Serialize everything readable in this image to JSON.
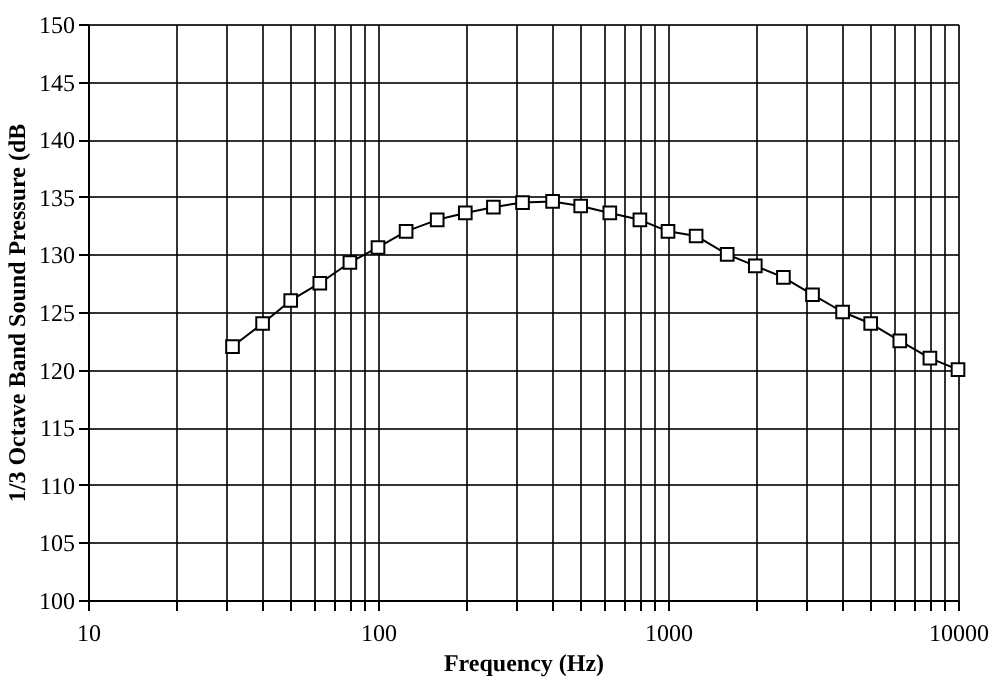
{
  "chart_data": {
    "type": "line",
    "xlabel": "Frequency (Hz)",
    "ylabel": "1/3 Octave Band Sound Pressure (dB",
    "x": [
      31.5,
      40,
      50,
      63,
      80,
      100,
      125,
      160,
      200,
      250,
      315,
      400,
      500,
      630,
      800,
      1000,
      1250,
      1600,
      2000,
      2500,
      3150,
      4000,
      5000,
      6300,
      8000,
      10000
    ],
    "series": [
      {
        "color": "#000000",
        "values": [
          122,
          124,
          126,
          127.5,
          129.3,
          130.6,
          132,
          133,
          133.6,
          134.1,
          134.5,
          134.6,
          134.2,
          133.6,
          133,
          132,
          131.6,
          130,
          129,
          128,
          126.5,
          125,
          124,
          122.5,
          121,
          120
        ]
      }
    ],
    "log": "x",
    "marker": "square",
    "line_style": "solid",
    "grid": true,
    "xlim": [
      10,
      10000
    ],
    "ylim": [
      100,
      150
    ],
    "xticks": [
      10,
      {
        "value": 20,
        "label": null
      },
      {
        "value": 30,
        "label": null
      },
      {
        "value": 40,
        "label": null
      },
      {
        "value": 50,
        "label": null
      },
      {
        "value": 60,
        "label": null
      },
      {
        "value": 70,
        "label": null
      },
      {
        "value": 80,
        "label": null
      },
      {
        "value": 90,
        "label": null
      },
      100,
      {
        "value": 200,
        "label": null
      },
      {
        "value": 300,
        "label": null
      },
      {
        "value": 400,
        "label": null
      },
      {
        "value": 500,
        "label": null
      },
      {
        "value": 600,
        "label": null
      },
      {
        "value": 700,
        "label": null
      },
      {
        "value": 800,
        "label": null
      },
      {
        "value": 900,
        "label": null
      },
      1000,
      {
        "value": 2000,
        "label": null
      },
      {
        "value": 3000,
        "label": null
      },
      {
        "value": 4000,
        "label": null
      },
      {
        "value": 5000,
        "label": null
      },
      {
        "value": 6000,
        "label": null
      },
      {
        "value": 7000,
        "label": null
      },
      {
        "value": 8000,
        "label": null
      },
      {
        "value": 9000,
        "label": null
      },
      10000
    ],
    "yticks": [
      100,
      105,
      110,
      115,
      120,
      125,
      130,
      135,
      140,
      145,
      150
    ]
  }
}
